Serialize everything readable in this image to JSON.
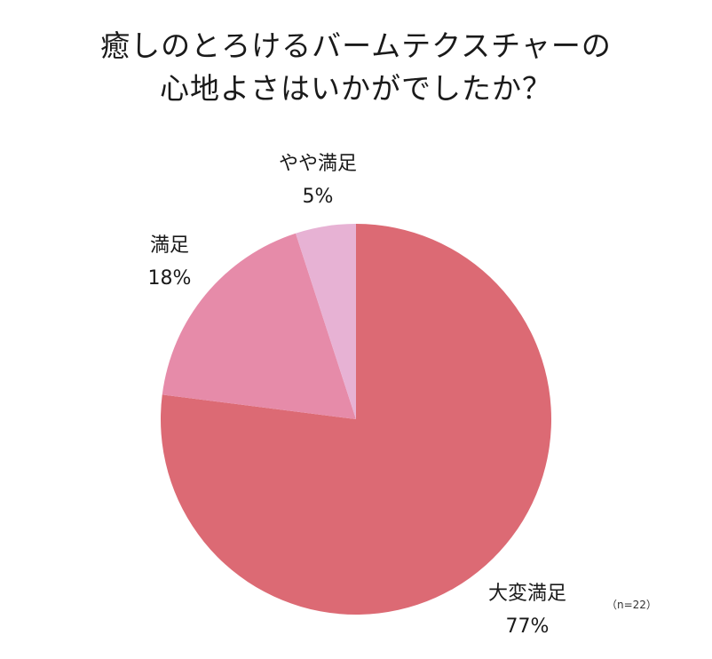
{
  "chart_data": {
    "type": "pie",
    "title": [
      "癒しのとろけるバームテクスチャーの",
      "心地よさはいかがでしたか？"
    ],
    "slices": [
      {
        "label": "大変満足",
        "value": 77,
        "value_text": "77%",
        "color": "#dc6a74"
      },
      {
        "label": "満足",
        "value": 18,
        "value_text": "18%",
        "color": "#e68ba9"
      },
      {
        "label": "やや満足",
        "value": 5,
        "value_text": "5%",
        "color": "#e7b2d4"
      }
    ],
    "sample_note": "（n=22）"
  }
}
